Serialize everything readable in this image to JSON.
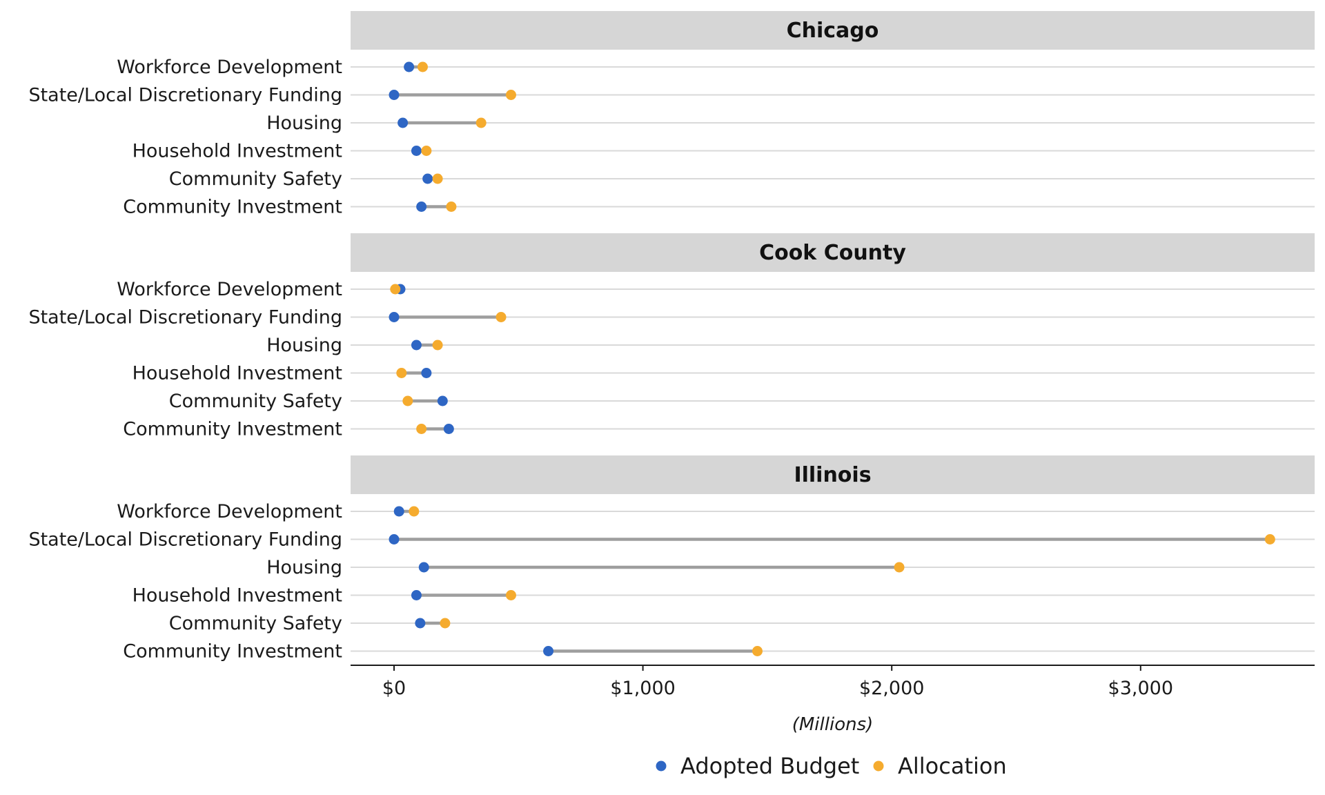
{
  "chart_data": {
    "type": "dumbbell",
    "xlabel": "(Millions)",
    "xlim": [
      -170,
      3700
    ],
    "x_ticks": [
      0,
      1000,
      2000,
      3000
    ],
    "x_tick_labels": [
      "$0",
      "$1,000",
      "$2,000",
      "$3,000"
    ],
    "categories": [
      "Workforce Development",
      "State/Local Discretionary Funding",
      "Housing",
      "Household Investment",
      "Community Safety",
      "Community Investment"
    ],
    "legend": {
      "position": "bottom",
      "entries": [
        "Adopted Budget",
        "Allocation"
      ]
    },
    "colors": {
      "Adopted Budget": "#2e66c4",
      "Allocation": "#f5ab2e",
      "connector": "#9e9e9e",
      "strip": "#d6d6d6",
      "grid": "#d9d9d9"
    },
    "panels": [
      {
        "title": "Chicago",
        "series": [
          {
            "name": "Adopted Budget",
            "values": [
              60,
              0,
              35,
              90,
              135,
              110
            ]
          },
          {
            "name": "Allocation",
            "values": [
              115,
              470,
              350,
              130,
              175,
              230
            ]
          }
        ]
      },
      {
        "title": "Cook County",
        "series": [
          {
            "name": "Adopted Budget",
            "values": [
              25,
              0,
              90,
              130,
              195,
              220
            ]
          },
          {
            "name": "Allocation",
            "values": [
              5,
              430,
              175,
              30,
              55,
              110
            ]
          }
        ]
      },
      {
        "title": "Illinois",
        "series": [
          {
            "name": "Adopted Budget",
            "values": [
              20,
              0,
              120,
              90,
              105,
              620
            ]
          },
          {
            "name": "Allocation",
            "values": [
              80,
              3520,
              2030,
              470,
              205,
              1460
            ]
          }
        ]
      }
    ]
  }
}
